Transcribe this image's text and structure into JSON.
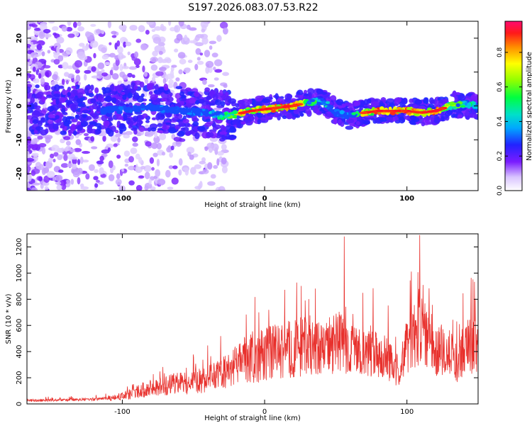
{
  "title": "S197.2026.083.07.53.R22",
  "chart_data": [
    {
      "type": "heatmap",
      "xlabel": "Height of straight line (km)",
      "ylabel": "Frequency (Hz)",
      "xlim": [
        -167,
        150
      ],
      "ylim": [
        -25,
        25
      ],
      "xticks": [
        -100,
        0,
        100
      ],
      "xtick_labels": [
        "-100",
        "0",
        "100"
      ],
      "yticks": [
        -20,
        -10,
        0,
        10,
        20
      ],
      "ytick_labels": [
        "-20",
        "-10",
        "0",
        "10",
        "20"
      ],
      "colorbar": {
        "label": "Normalized spectral amplitude",
        "range": [
          0,
          0.98
        ],
        "ticks": [
          0,
          0.2,
          0.4,
          0.6,
          0.8
        ],
        "tick_labels": [
          "0.0",
          "0.2",
          "0.4",
          "0.6",
          "0.8"
        ]
      },
      "ridge": {
        "x": [
          -167,
          -120,
          -100,
          -80,
          -60,
          -40,
          -30,
          -20,
          -10,
          0,
          10,
          20,
          30,
          40,
          45,
          50,
          60,
          70,
          80,
          90,
          100,
          110,
          120,
          130,
          140,
          150
        ],
        "y": [
          -1,
          -1.5,
          -1,
          -0.5,
          -1.5,
          -2,
          -3,
          -2.5,
          -1.5,
          -1,
          -0.5,
          0,
          1,
          1.5,
          0,
          -2,
          -3,
          -2,
          -1.5,
          -1.5,
          -1.5,
          -2,
          -1.5,
          0,
          0.5,
          0
        ],
        "amplitude": [
          0.2,
          0.3,
          0.35,
          0.35,
          0.35,
          0.4,
          0.55,
          0.8,
          0.85,
          0.9,
          0.95,
          0.95,
          0.7,
          0.45,
          0.5,
          0.35,
          0.45,
          0.85,
          0.95,
          0.95,
          0.95,
          0.9,
          0.95,
          0.7,
          0.6,
          0.5
        ]
      }
    },
    {
      "type": "line",
      "xlabel": "Height of straight line (km)",
      "ylabel": "SNR (10 * v/v)",
      "xlim": [
        -167,
        150
      ],
      "ylim": [
        0,
        1300
      ],
      "xticks": [
        -100,
        0,
        100
      ],
      "xtick_labels": [
        "-100",
        "0",
        "100"
      ],
      "yticks": [
        0,
        200,
        400,
        600,
        800,
        1000,
        1200
      ],
      "ytick_labels": [
        "0",
        "200",
        "400",
        "600",
        "800",
        "1000",
        "1200"
      ],
      "color": "#e8302c",
      "envelope": {
        "x": [
          -167,
          -140,
          -120,
          -105,
          -95,
          -85,
          -75,
          -65,
          -55,
          -45,
          -35,
          -25,
          -20,
          -15,
          -10,
          -5,
          0,
          5,
          10,
          15,
          20,
          25,
          30,
          35,
          40,
          45,
          50,
          55,
          60,
          65,
          70,
          75,
          80,
          85,
          90,
          95,
          100,
          105,
          110,
          115,
          120,
          125,
          130,
          135,
          140,
          145,
          150
        ],
        "y": [
          25,
          30,
          35,
          45,
          70,
          110,
          130,
          150,
          160,
          180,
          210,
          250,
          300,
          330,
          360,
          360,
          370,
          390,
          400,
          410,
          420,
          440,
          440,
          420,
          420,
          450,
          460,
          470,
          420,
          380,
          380,
          420,
          400,
          360,
          300,
          240,
          450,
          540,
          620,
          520,
          400,
          420,
          380,
          300,
          420,
          450,
          460
        ]
      },
      "peak": {
        "x": 56,
        "y": 1280
      }
    }
  ]
}
